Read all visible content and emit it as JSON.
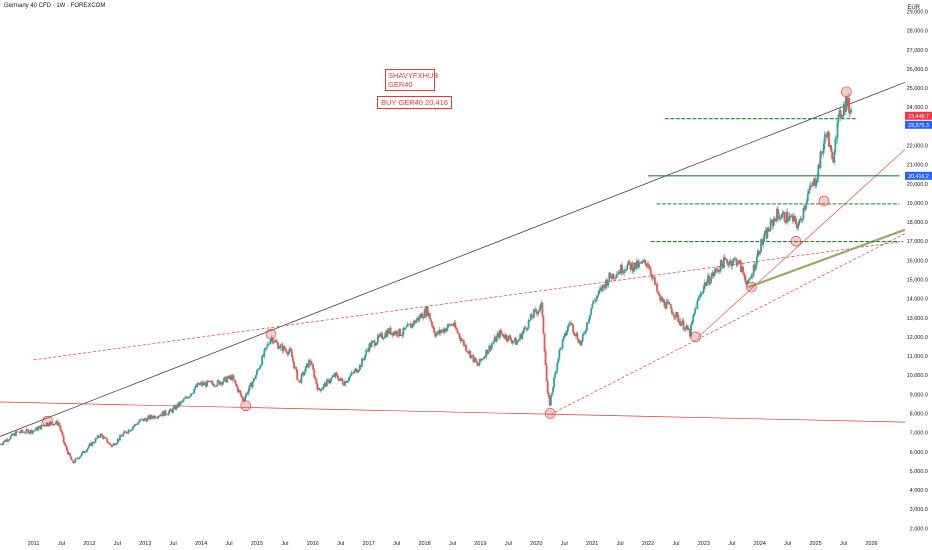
{
  "header": {
    "symbol_title": "Germany 40 CFD · 1W · FOREXCOM",
    "currency": "EUR"
  },
  "notes": {
    "author_line1": "SHAVYFXHUB",
    "author_line2": "GER40",
    "trade_idea": "BUY GER40 20,416"
  },
  "colors": {
    "up": "#26a69a",
    "down": "#ef5350",
    "trend": "#e53935",
    "support": "#2e7d32",
    "price_tag_red": "#f23645",
    "price_tag_blue": "#2962ff"
  },
  "chart_data": {
    "type": "candlestick",
    "y_axis": {
      "ticks": [
        2000,
        3000,
        4000,
        5000,
        6000,
        7000,
        8000,
        9000,
        10000,
        11000,
        12000,
        13000,
        14000,
        15000,
        16000,
        17000,
        18000,
        19000,
        20000,
        21000,
        22000,
        23000,
        24000,
        25000,
        26000,
        27000,
        28000,
        29000
      ],
      "tick_labels": [
        "2,000.0",
        "3,000.0",
        "4,000.0",
        "5,000.0",
        "6,000.0",
        "7,000.0",
        "8,000.0",
        "9,000.0",
        "10,000.0",
        "11,000.0",
        "12,000.0",
        "13,000.0",
        "14,000.0",
        "15,000.0",
        "16,000.0",
        "17,000.0",
        "18,000.0",
        "19,000.0",
        "20,000.0",
        "21,000.0",
        "22,000.0",
        "23,000.0",
        "24,000.0",
        "25,000.0",
        "26,000.0",
        "27,000.0",
        "28,000.0",
        "29,000.0"
      ],
      "range": [
        1600,
        29600
      ]
    },
    "x_axis": {
      "ticks": [
        2011,
        2011.5,
        2012,
        2012.5,
        2013,
        2013.5,
        2014,
        2014.5,
        2015,
        2015.5,
        2016,
        2016.5,
        2017,
        2017.5,
        2018,
        2018.5,
        2019,
        2019.5,
        2020,
        2020.5,
        2021,
        2021.5,
        2022,
        2022.5,
        2023,
        2023.5,
        2024,
        2024.5,
        2025,
        2025.5,
        2026
      ],
      "tick_labels": [
        "2011",
        "Jul",
        "2012",
        "Jul",
        "2013",
        "Jul",
        "2014",
        "Jul",
        "2015",
        "Jul",
        "2016",
        "Jul",
        "2017",
        "Jul",
        "2018",
        "Jul",
        "2019",
        "Jul",
        "2020",
        "Jul",
        "2021",
        "Jul",
        "2022",
        "Jul",
        "2023",
        "Jul",
        "2024",
        "Jul",
        "2025",
        "Jul",
        "2026"
      ],
      "range": [
        2010.4,
        2026.6
      ]
    },
    "price_path": [
      [
        2010.4,
        6400
      ],
      [
        2010.7,
        7000
      ],
      [
        2011.0,
        7100
      ],
      [
        2011.25,
        7500
      ],
      [
        2011.45,
        7500
      ],
      [
        2011.55,
        6400
      ],
      [
        2011.7,
        5400
      ],
      [
        2011.9,
        6000
      ],
      [
        2012.2,
        6900
      ],
      [
        2012.4,
        6300
      ],
      [
        2012.6,
        6900
      ],
      [
        2012.9,
        7600
      ],
      [
        2013.2,
        7900
      ],
      [
        2013.45,
        8100
      ],
      [
        2013.7,
        8700
      ],
      [
        2013.95,
        9500
      ],
      [
        2014.3,
        9600
      ],
      [
        2014.55,
        9900
      ],
      [
        2014.75,
        8700
      ],
      [
        2014.95,
        9800
      ],
      [
        2015.25,
        12000
      ],
      [
        2015.4,
        11500
      ],
      [
        2015.6,
        11200
      ],
      [
        2015.75,
        9600
      ],
      [
        2015.95,
        10800
      ],
      [
        2016.1,
        9200
      ],
      [
        2016.4,
        10000
      ],
      [
        2016.55,
        9600
      ],
      [
        2016.85,
        10500
      ],
      [
        2017.0,
        11500
      ],
      [
        2017.35,
        12300
      ],
      [
        2017.6,
        12200
      ],
      [
        2017.9,
        13000
      ],
      [
        2018.05,
        13400
      ],
      [
        2018.2,
        12100
      ],
      [
        2018.5,
        12700
      ],
      [
        2018.75,
        11400
      ],
      [
        2018.95,
        10500
      ],
      [
        2019.1,
        11200
      ],
      [
        2019.35,
        12200
      ],
      [
        2019.65,
        11700
      ],
      [
        2019.95,
        13200
      ],
      [
        2020.1,
        13600
      ],
      [
        2020.2,
        9000
      ],
      [
        2020.24,
        8500
      ],
      [
        2020.4,
        11100
      ],
      [
        2020.6,
        12800
      ],
      [
        2020.8,
        11600
      ],
      [
        2021.0,
        13700
      ],
      [
        2021.3,
        15100
      ],
      [
        2021.6,
        15700
      ],
      [
        2021.8,
        15700
      ],
      [
        2022.0,
        15900
      ],
      [
        2022.2,
        14000
      ],
      [
        2022.4,
        13500
      ],
      [
        2022.55,
        12900
      ],
      [
        2022.75,
        12200
      ],
      [
        2022.85,
        13500
      ],
      [
        2023.0,
        14700
      ],
      [
        2023.35,
        15900
      ],
      [
        2023.6,
        16000
      ],
      [
        2023.8,
        14700
      ],
      [
        2024.0,
        16700
      ],
      [
        2024.3,
        18400
      ],
      [
        2024.55,
        18200
      ],
      [
        2024.7,
        17800
      ],
      [
        2024.85,
        19400
      ],
      [
        2025.0,
        20200
      ],
      [
        2025.1,
        21500
      ],
      [
        2025.2,
        22800
      ],
      [
        2025.3,
        21000
      ],
      [
        2025.35,
        22500
      ],
      [
        2025.45,
        23700
      ],
      [
        2025.55,
        24300
      ],
      [
        2025.62,
        23800
      ],
      [
        2025.65,
        24500
      ]
    ],
    "price_tags": [
      {
        "label": "23,446.7",
        "value": 23446.7,
        "color": "#f23645"
      },
      {
        "label": "23,375.3",
        "value": 23375.3,
        "color": "#2962ff"
      },
      {
        "label": "20,416.2",
        "value": 20416.2,
        "color": "#2962ff"
      }
    ],
    "horizontal_levels": [
      {
        "value": 23400,
        "x_start": 2022.3,
        "x_end": 2025.75
      },
      {
        "value": 20416,
        "x_start": 2022.0,
        "x_end": 2026.5
      },
      {
        "value": 18950,
        "x_start": 2022.15,
        "x_end": 2026.5
      },
      {
        "value": 16980,
        "x_start": 2022.05,
        "x_end": 2026.5
      }
    ],
    "trendlines": [
      {
        "name": "upper_channel",
        "from": [
          2010.4,
          6800
        ],
        "to": [
          2026.6,
          25300
        ]
      },
      {
        "name": "lower_support_2020",
        "from": [
          2020.25,
          7950
        ],
        "to": [
          2026.6,
          17400
        ]
      },
      {
        "name": "support_2022",
        "from": [
          2022.9,
          12000
        ],
        "to": [
          2026.6,
          21800
        ]
      },
      {
        "name": "middle_line",
        "from": [
          2011.0,
          10800
        ],
        "to": [
          2026.6,
          17000
        ]
      },
      {
        "name": "descending_base",
        "from": [
          2010.4,
          8600
        ],
        "to": [
          2026.6,
          7550
        ]
      },
      {
        "name": "green_channel",
        "from": [
          2023.8,
          14600
        ],
        "to": [
          2026.6,
          17600
        ]
      }
    ],
    "points_of_interest": [
      {
        "x": 2015.25,
        "y": 12150
      },
      {
        "x": 2014.8,
        "y": 8400
      },
      {
        "x": 2011.25,
        "y": 7600
      },
      {
        "x": 2020.25,
        "y": 8000
      },
      {
        "x": 2022.85,
        "y": 12000
      },
      {
        "x": 2023.85,
        "y": 14600
      },
      {
        "x": 2024.65,
        "y": 17000
      },
      {
        "x": 2025.15,
        "y": 19100
      },
      {
        "x": 2025.55,
        "y": 24800
      }
    ]
  }
}
